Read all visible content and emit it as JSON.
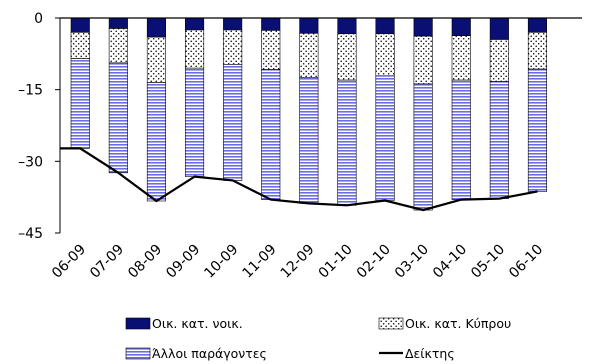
{
  "chart_data": {
    "type": "bar",
    "stacked": true,
    "categories": [
      "06-09",
      "07-09",
      "08-09",
      "09-09",
      "10-09",
      "11-09",
      "12-09",
      "01-10",
      "02-10",
      "03-10",
      "04-10",
      "05-10",
      "06-10"
    ],
    "ylim": [
      -45,
      0
    ],
    "yticks": [
      0,
      -15,
      -30,
      -45
    ],
    "ytick_labels": [
      "0",
      "–15",
      "–30",
      "–45"
    ],
    "legend_position": "bottom",
    "colors": {
      "navy": "#0a0f73",
      "stripe_blue": "#6a6ee0",
      "dot": "#000000",
      "line": "#000000"
    },
    "series": [
      {
        "name": "Οικ. κατ. νοικ.",
        "pattern": "solid",
        "values": [
          -3.0,
          -2.2,
          -4.0,
          -2.5,
          -2.5,
          -2.6,
          -3.2,
          -3.3,
          -3.3,
          -3.8,
          -3.7,
          -4.5,
          -3.0
        ]
      },
      {
        "name": "Οικ. κατ. Κύπρου",
        "pattern": "dots",
        "values": [
          -5.5,
          -7.2,
          -9.5,
          -8.0,
          -7.2,
          -8.2,
          -9.3,
          -9.7,
          -8.8,
          -10.0,
          -9.3,
          -8.8,
          -7.7
        ]
      },
      {
        "name": "Άλλοι παράγοντες",
        "pattern": "stripes",
        "values": [
          -18.8,
          -23.0,
          -24.8,
          -22.7,
          -24.3,
          -27.2,
          -26.3,
          -26.2,
          -26.1,
          -26.4,
          -25.0,
          -24.5,
          -25.6
        ]
      },
      {
        "name": "Δείκτης",
        "type": "line",
        "values": [
          -27.3,
          -32.4,
          -38.3,
          -33.2,
          -34.0,
          -38.0,
          -38.8,
          -39.2,
          -38.2,
          -40.2,
          -38.0,
          -37.8,
          -36.3
        ]
      }
    ]
  }
}
